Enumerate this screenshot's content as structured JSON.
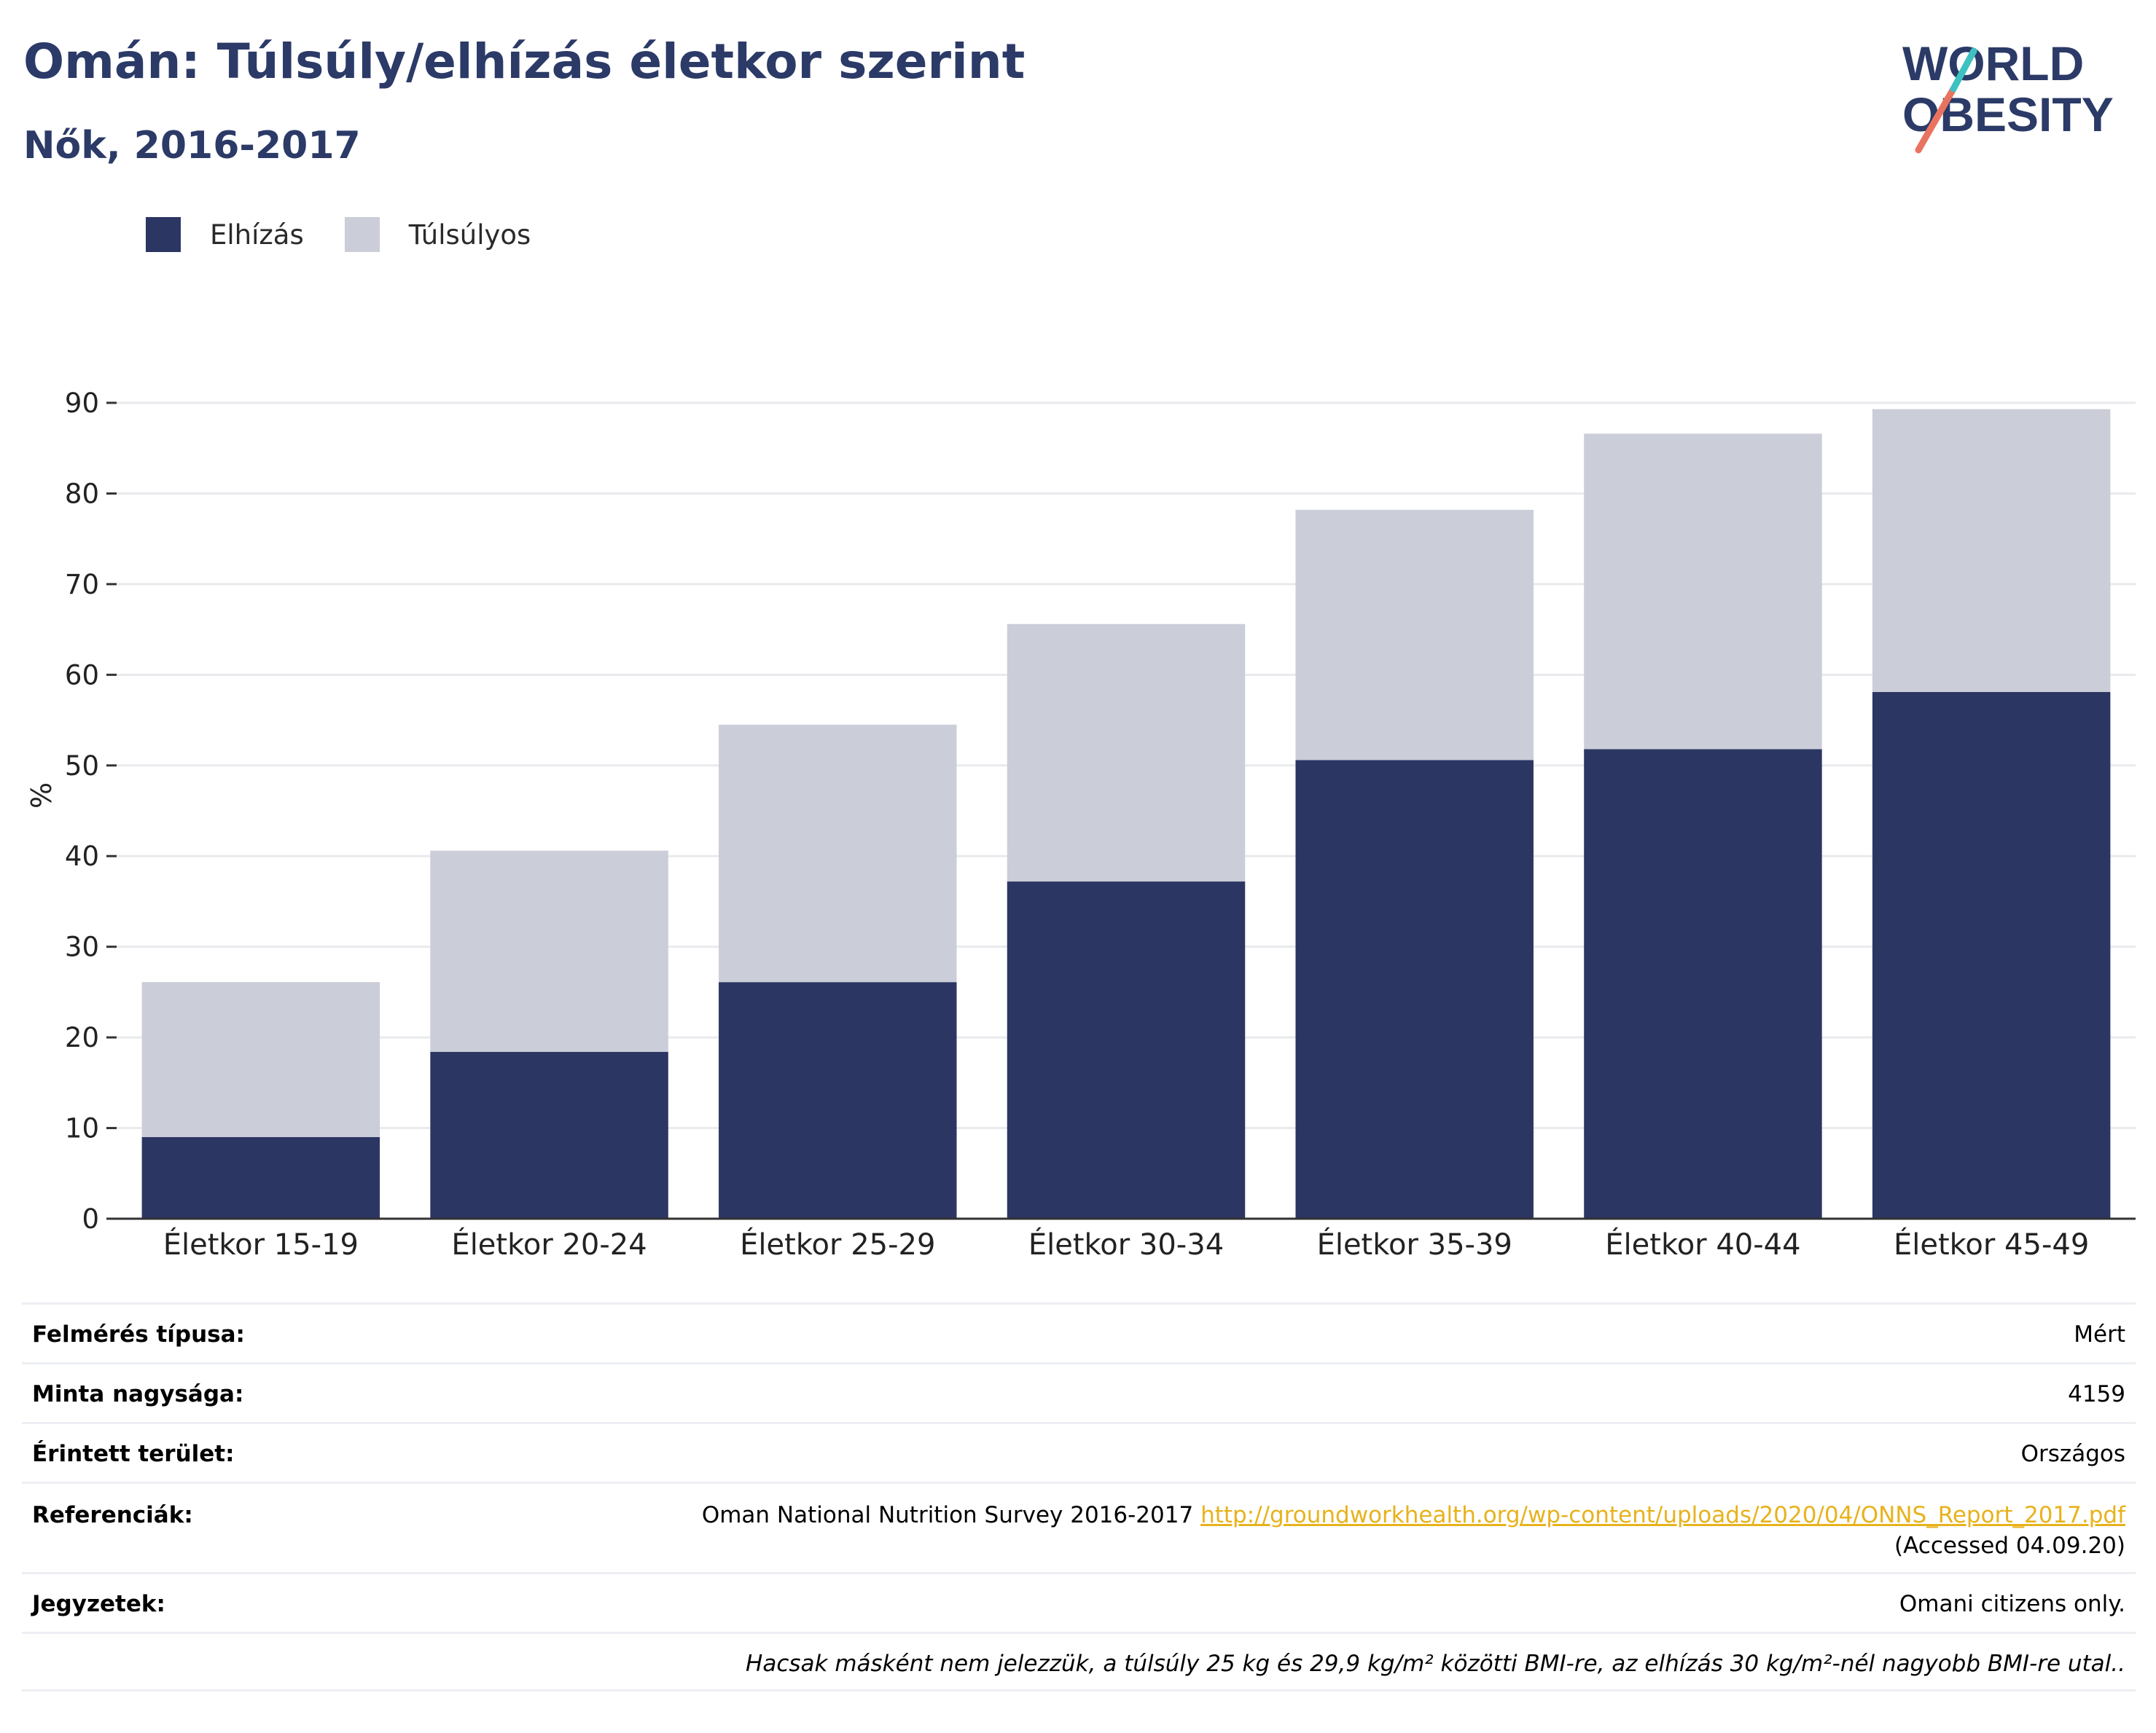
{
  "title": "Omán: Túlsúly/elhízás életkor szerint",
  "subtitle": "Nők, 2016-2017",
  "logo": {
    "line1": "WORLD",
    "line2": "OBESITY"
  },
  "colors": {
    "obesity": "#2b3663",
    "overweight": "#cbcdd8",
    "title": "#2b3a67",
    "grid": "#e9eaee",
    "axis": "#333333",
    "logo_teal": "#3ec1c1",
    "logo_coral": "#e9735f"
  },
  "chart_data": {
    "type": "bar",
    "stacked": true,
    "categories": [
      "Életkor 15-19",
      "Életkor 20-24",
      "Életkor 25-29",
      "Életkor 30-34",
      "Életkor 35-39",
      "Életkor 40-44",
      "Életkor 45-49"
    ],
    "series": [
      {
        "name": "Elhízás",
        "values": [
          9.0,
          18.4,
          26.1,
          37.2,
          50.6,
          51.8,
          58.1
        ]
      },
      {
        "name": "Túlsúlyos",
        "values": [
          17.1,
          22.2,
          28.4,
          28.4,
          27.6,
          34.8,
          31.2
        ]
      }
    ],
    "ylabel": "%",
    "ylim": [
      0,
      90
    ],
    "yticks": [
      0,
      10,
      20,
      30,
      40,
      50,
      60,
      70,
      80,
      90
    ],
    "grid": true,
    "legend": "top-left"
  },
  "info": {
    "survey_type": {
      "label": "Felmérés típusa:",
      "value": "Mért"
    },
    "sample_size": {
      "label": "Minta nagysága:",
      "value": "4159"
    },
    "area": {
      "label": "Érintett terület:",
      "value": "Országos"
    },
    "references": {
      "label": "Referenciák:",
      "text": "Oman National Nutrition Survey 2016-2017",
      "link": "http://groundworkhealth.org/wp-content/uploads/2020/04/ONNS_Report_2017.pdf",
      "accessed": "(Accessed 04.09.20)"
    },
    "notes": {
      "label": "Jegyzetek:",
      "value": "Omani citizens only."
    }
  },
  "footnote": "Hacsak másként nem jelezzük, a túlsúly 25 kg és 29,9 kg/m² közötti BMI-re, az elhízás 30 kg/m²-nél nagyobb BMI-re utal.."
}
